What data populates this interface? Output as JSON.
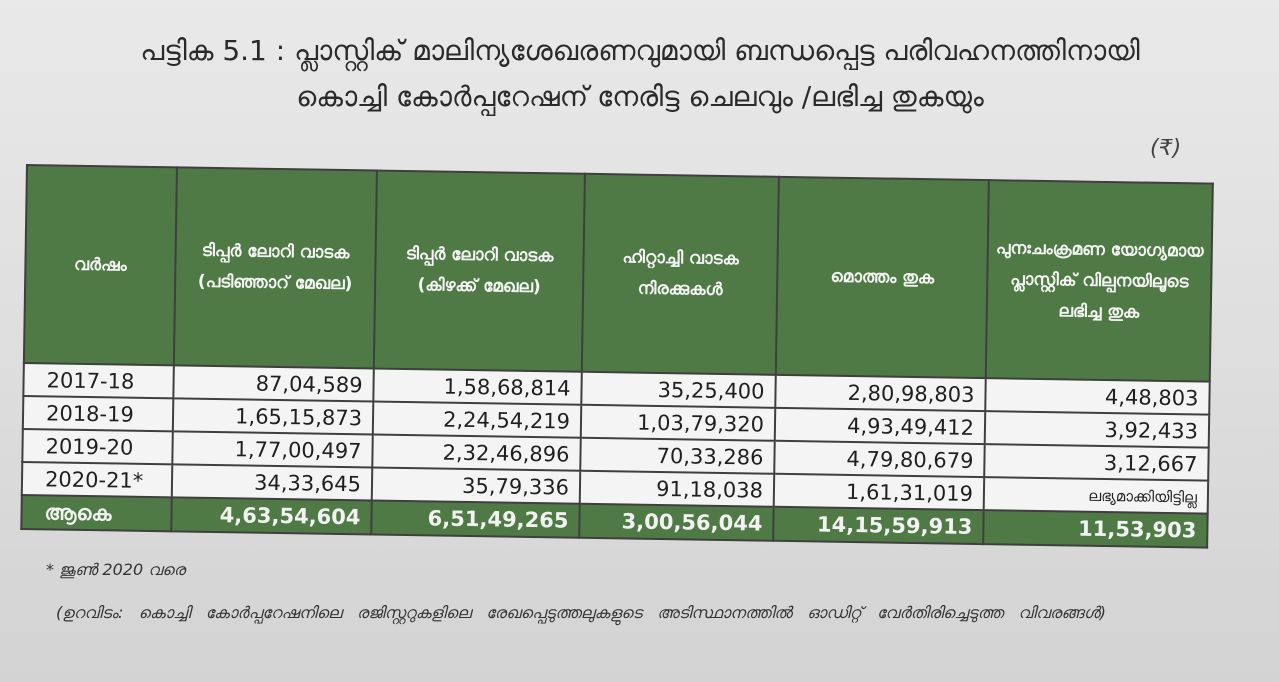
{
  "title": {
    "line1": "പട്ടിക 5.1 : പ്ലാസ്റ്റിക് മാലിന്യശേഖരണവുമായി ബന്ധപ്പെട്ട പരിവഹനത്തിനായി",
    "line2": "കൊച്ചി കോർപ്പറേഷന് നേരിട്ട ചെലവും /ലഭിച്ച തുകയും"
  },
  "unit": "(₹)",
  "table": {
    "headers": [
      "വർഷം",
      "ടിപ്പർ ലോറി വാടക (പടിഞ്ഞാറ് മേഖല)",
      "ടിപ്പർ ലോറി വാടക (കിഴക്ക് മേഖല)",
      "ഹിറ്റാച്ചി വാടക നിരക്കുകൾ",
      "മൊത്തം തുക",
      "പുനഃചംക്രമണ യോഗ്യമായ പ്ലാസ്റ്റിക് വില്പനയിലൂടെ ലഭിച്ച തുക"
    ],
    "rows": [
      [
        "2017-18",
        "87,04,589",
        "1,58,68,814",
        "35,25,400",
        "2,80,98,803",
        "4,48,803"
      ],
      [
        "2018-19",
        "1,65,15,873",
        "2,24,54,219",
        "1,03,79,320",
        "4,93,49,412",
        "3,92,433"
      ],
      [
        "2019-20",
        "1,77,00,497",
        "2,32,46,896",
        "70,33,286",
        "4,79,80,679",
        "3,12,667"
      ],
      [
        "2020-21*",
        "34,33,645",
        "35,79,336",
        "91,18,038",
        "1,61,31,019",
        "ലഭ്യമാക്കിയിട്ടില്ല"
      ]
    ],
    "total": [
      "ആകെ",
      "4,63,54,604",
      "6,51,49,265",
      "3,00,56,044",
      "14,15,59,913",
      "11,53,903"
    ]
  },
  "footnote": "* ജൂൺ 2020 വരെ",
  "source": "(ഉറവിടം: കൊച്ചി കോർപ്പറേഷനിലെ രജിസ്റ്ററുകളിലെ രേഖപ്പെടുത്തലുകളുടെ അടിസ്ഥാനത്തിൽ ഓഡിറ്റ് വേർതിരിച്ചെടുത്ത വിവരങ്ങൾ)"
}
